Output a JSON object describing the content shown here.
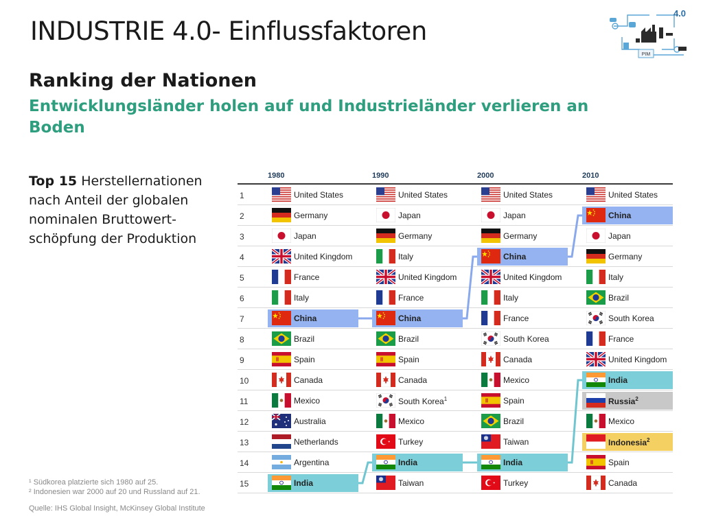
{
  "slide": {
    "title": "INDUSTRIE 4.0- Einflussfaktoren",
    "heading": "Ranking der Nationen",
    "subheading": "Entwicklungsländer holen auf und Industrieländer verlieren an Boden",
    "description_bold": "Top 15",
    "description_rest": " Herstellernationen nach Anteil der globalen nominalen Bruttowert-schöpfung der Produktion",
    "footnote_1": "¹ Südkorea platzierte sich 1980 auf 25.",
    "footnote_2": "² Indonesien war 2000 auf 20 und Russland auf 21.",
    "source": "Quelle: IHS Global Insight, McKinsey Global Institute",
    "logo_label_4": "4.0",
    "logo_label_pim": "PIM"
  },
  "table": {
    "years": [
      "1980",
      "1990",
      "2000",
      "2010"
    ],
    "ranks": [
      "1",
      "2",
      "3",
      "4",
      "5",
      "6",
      "7",
      "8",
      "9",
      "10",
      "11",
      "12",
      "13",
      "14",
      "15"
    ],
    "columns": [
      [
        {
          "name": "United States",
          "flag": "us"
        },
        {
          "name": "Germany",
          "flag": "de"
        },
        {
          "name": "Japan",
          "flag": "jp"
        },
        {
          "name": "United Kingdom",
          "flag": "uk"
        },
        {
          "name": "France",
          "flag": "fr"
        },
        {
          "name": "Italy",
          "flag": "it"
        },
        {
          "name": "China",
          "flag": "cn",
          "hl": "blue"
        },
        {
          "name": "Brazil",
          "flag": "br"
        },
        {
          "name": "Spain",
          "flag": "es"
        },
        {
          "name": "Canada",
          "flag": "ca"
        },
        {
          "name": "Mexico",
          "flag": "mx"
        },
        {
          "name": "Australia",
          "flag": "au"
        },
        {
          "name": "Netherlands",
          "flag": "nl"
        },
        {
          "name": "Argentina",
          "flag": "ar"
        },
        {
          "name": "India",
          "flag": "in",
          "hl": "teal"
        }
      ],
      [
        {
          "name": "United States",
          "flag": "us"
        },
        {
          "name": "Japan",
          "flag": "jp"
        },
        {
          "name": "Germany",
          "flag": "de"
        },
        {
          "name": "Italy",
          "flag": "it"
        },
        {
          "name": "United Kingdom",
          "flag": "uk"
        },
        {
          "name": "France",
          "flag": "fr"
        },
        {
          "name": "China",
          "flag": "cn",
          "hl": "blue"
        },
        {
          "name": "Brazil",
          "flag": "br"
        },
        {
          "name": "Spain",
          "flag": "es"
        },
        {
          "name": "Canada",
          "flag": "ca"
        },
        {
          "name": "South Korea",
          "sup": "1",
          "flag": "kr"
        },
        {
          "name": "Mexico",
          "flag": "mx"
        },
        {
          "name": "Turkey",
          "flag": "tr"
        },
        {
          "name": "India",
          "flag": "in",
          "hl": "teal"
        },
        {
          "name": "Taiwan",
          "flag": "tw"
        }
      ],
      [
        {
          "name": "United States",
          "flag": "us"
        },
        {
          "name": "Japan",
          "flag": "jp"
        },
        {
          "name": "Germany",
          "flag": "de"
        },
        {
          "name": "China",
          "flag": "cn",
          "hl": "blue"
        },
        {
          "name": "United Kingdom",
          "flag": "uk"
        },
        {
          "name": "Italy",
          "flag": "it"
        },
        {
          "name": "France",
          "flag": "fr"
        },
        {
          "name": "South Korea",
          "flag": "kr"
        },
        {
          "name": "Canada",
          "flag": "ca"
        },
        {
          "name": "Mexico",
          "flag": "mx"
        },
        {
          "name": "Spain",
          "flag": "es"
        },
        {
          "name": "Brazil",
          "flag": "br"
        },
        {
          "name": "Taiwan",
          "flag": "tw"
        },
        {
          "name": "India",
          "flag": "in",
          "hl": "teal"
        },
        {
          "name": "Turkey",
          "flag": "tr"
        }
      ],
      [
        {
          "name": "United States",
          "flag": "us"
        },
        {
          "name": "China",
          "flag": "cn",
          "hl": "blue"
        },
        {
          "name": "Japan",
          "flag": "jp"
        },
        {
          "name": "Germany",
          "flag": "de"
        },
        {
          "name": "Italy",
          "flag": "it"
        },
        {
          "name": "Brazil",
          "flag": "br"
        },
        {
          "name": "South Korea",
          "flag": "kr"
        },
        {
          "name": "France",
          "flag": "fr"
        },
        {
          "name": "United Kingdom",
          "flag": "uk"
        },
        {
          "name": "India",
          "flag": "in",
          "hl": "teal"
        },
        {
          "name": "Russia",
          "sup": "2",
          "flag": "ru",
          "hl": "gray"
        },
        {
          "name": "Mexico",
          "flag": "mx"
        },
        {
          "name": "Indonesia",
          "sup": "2",
          "flag": "id",
          "hl": "yellow"
        },
        {
          "name": "Spain",
          "flag": "es"
        },
        {
          "name": "Canada",
          "flag": "ca"
        }
      ]
    ]
  },
  "colors": {
    "subheading": "#2e9e7f",
    "highlight_china": "#95b3f0",
    "highlight_india": "#7ccfd8",
    "highlight_russia": "#c8c8c8",
    "highlight_indonesia": "#f4cf62"
  }
}
